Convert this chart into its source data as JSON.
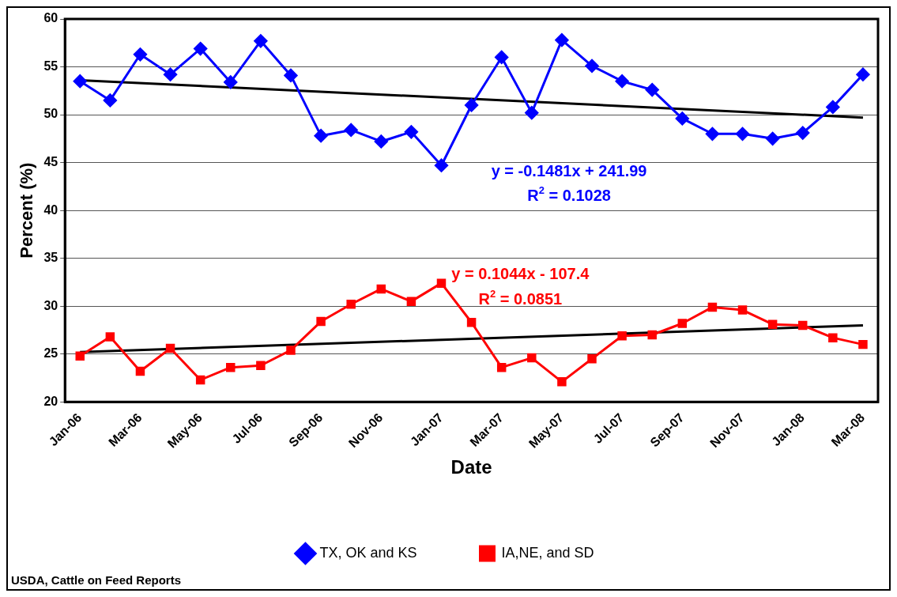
{
  "chart_data": {
    "type": "line",
    "xlabel": "Date",
    "ylabel": "Percent (%)",
    "categories": [
      "Jan-06",
      null,
      "Mar-06",
      null,
      "May-06",
      null,
      "Jul-06",
      null,
      "Sep-06",
      null,
      "Nov-06",
      null,
      "Jan-07",
      null,
      "Mar-07",
      null,
      "May-07",
      null,
      "Jul-07",
      null,
      "Sep-07",
      null,
      "Nov-07",
      null,
      "Jan-08",
      null,
      "Mar-08"
    ],
    "series": [
      {
        "name": "TX, OK and KS",
        "color": "#0000ff",
        "marker": "diamond",
        "values": [
          53.5,
          51.5,
          56.3,
          54.2,
          56.9,
          53.4,
          57.7,
          54.1,
          47.8,
          48.4,
          47.2,
          48.2,
          44.7,
          51.0,
          56.0,
          50.2,
          57.8,
          55.1,
          53.5,
          52.6,
          49.6,
          48.0,
          48.0,
          47.5,
          48.1,
          50.8,
          54.2
        ]
      },
      {
        "name": "IA,NE, and SD",
        "color": "#ff0000",
        "marker": "square",
        "values": [
          24.8,
          26.8,
          23.2,
          25.6,
          22.3,
          23.6,
          23.8,
          25.4,
          28.4,
          30.2,
          31.8,
          30.5,
          32.4,
          28.3,
          23.6,
          24.6,
          22.1,
          24.5,
          26.9,
          27.0,
          28.2,
          29.9,
          29.6,
          28.1,
          28.0,
          26.7,
          26.0
        ]
      },
      {
        "type": "line",
        "color": "#000000",
        "marker": "none",
        "x": [
          "Jan-06",
          "Mar-08"
        ],
        "values": [
          53.6,
          49.7
        ]
      },
      {
        "type": "line",
        "color": "#000000",
        "marker": "none",
        "x": [
          "Jan-06",
          "Mar-08"
        ],
        "values": [
          25.2,
          28.0
        ]
      }
    ],
    "ylim": [
      20,
      60
    ],
    "yticks": [
      20,
      25,
      30,
      35,
      40,
      45,
      50,
      55,
      60
    ],
    "grid": "y",
    "legend": "bottom",
    "annotations": [
      "y = -0.1481x + 241.99",
      "R$^{2}$ = 0.1028",
      "y = 0.1044x - 107.4",
      "R$^{2}$ = 0.0851",
      "USDA, Cattle on Feed Reports"
    ]
  }
}
